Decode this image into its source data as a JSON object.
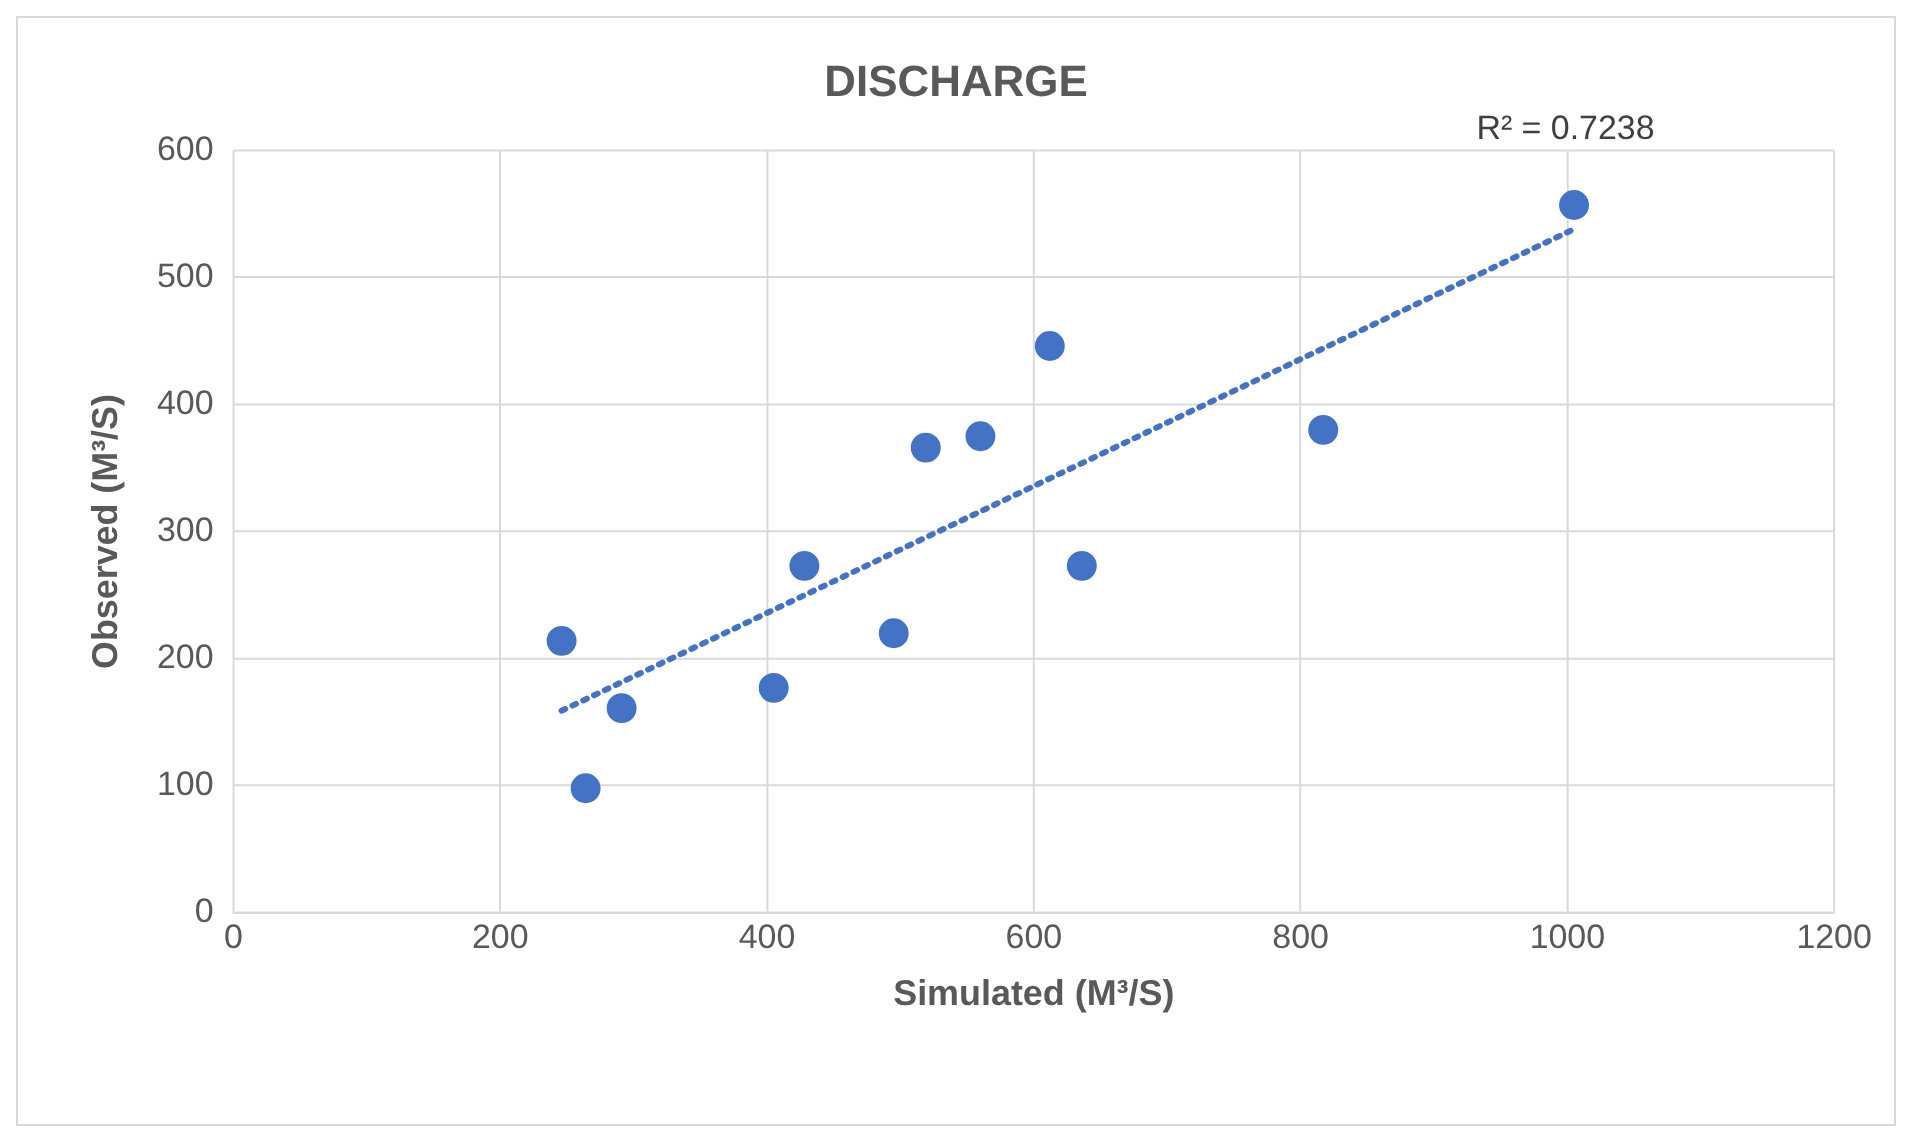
{
  "chart_data": {
    "type": "scatter",
    "title": "DISCHARGE",
    "xlabel": "Simulated (M³/S)",
    "ylabel": "Observed (M³/S)",
    "series": [
      {
        "color": "#4472c4",
        "x": [
          246,
          264,
          291,
          405,
          428,
          495,
          519,
          560,
          612,
          636,
          817,
          1005
        ],
        "values": [
          214,
          98,
          161,
          177,
          273,
          220,
          366,
          375,
          446,
          273,
          380,
          557
        ]
      },
      {
        "type": "line",
        "color": "#4472c4",
        "line_style": "dotted",
        "marker": "none",
        "x": [
          246,
          1005
        ],
        "values": [
          159,
          538
        ]
      }
    ],
    "annotations": [
      "R² = 0.7238"
    ],
    "marker": "circle",
    "xlim": [
      0,
      1200
    ],
    "xticks": [
      0,
      200,
      400,
      600,
      800,
      1000,
      1200
    ],
    "ylim": [
      0,
      600
    ],
    "yticks": [
      0,
      100,
      200,
      300,
      400,
      500,
      600
    ],
    "grid": true,
    "legend": false
  }
}
